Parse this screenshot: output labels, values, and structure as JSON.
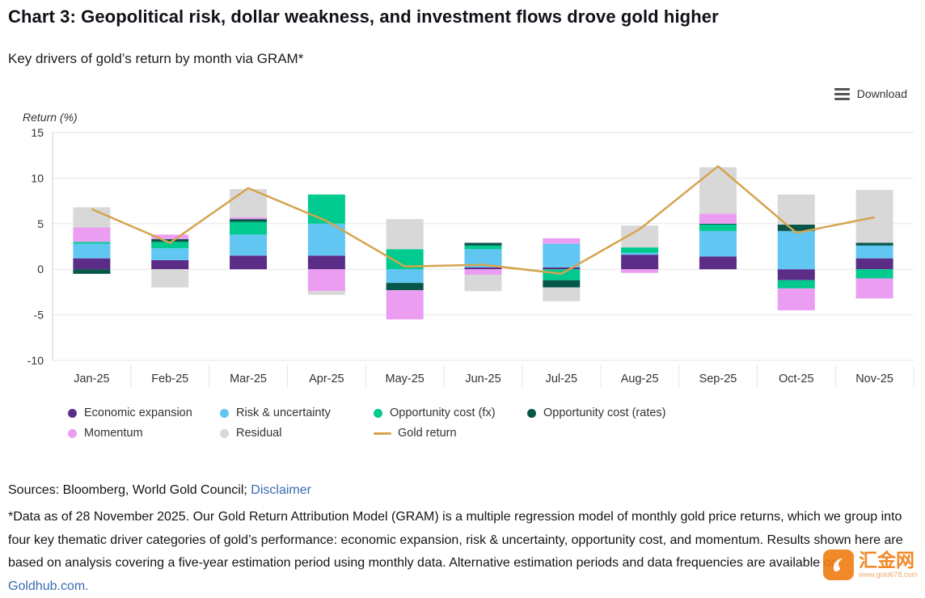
{
  "header": {
    "title": "Chart 3: Geopolitical risk, dollar weakness, and investment flows drove gold higher",
    "subtitle": "Key drivers of gold’s return by month via GRAM*"
  },
  "toolbar": {
    "download_label": "Download"
  },
  "chart_data": {
    "type": "bar",
    "stacked": true,
    "ylabel": "Return (%)",
    "ylim": [
      -10,
      15
    ],
    "yticks": [
      15,
      10,
      5,
      0,
      -5,
      -10
    ],
    "grid": true,
    "legend_position": "bottom",
    "categories": [
      "Jan-25",
      "Feb-25",
      "Mar-25",
      "Apr-25",
      "May-25",
      "Jun-25",
      "Jul-25",
      "Aug-25",
      "Sep-25",
      "Oct-25",
      "Nov-25"
    ],
    "series": [
      {
        "name": "Economic expansion",
        "color": "#5c2d87",
        "values": [
          1.2,
          1.0,
          1.5,
          1.5,
          0.0,
          0.2,
          0.2,
          1.6,
          1.4,
          -1.2,
          1.2
        ]
      },
      {
        "name": "Risk & uncertainty",
        "color": "#61c6f2",
        "values": [
          1.6,
          1.3,
          2.3,
          3.5,
          -1.5,
          2.0,
          2.6,
          0.2,
          2.8,
          4.2,
          1.4
        ]
      },
      {
        "name": "Opportunity cost (fx)",
        "color": "#00ca8e",
        "values": [
          0.2,
          0.7,
          1.4,
          3.2,
          2.2,
          0.4,
          -1.2,
          0.6,
          0.7,
          -0.9,
          -1.0
        ]
      },
      {
        "name": "Opportunity cost (rates)",
        "color": "#07564a",
        "values": [
          -0.5,
          0.3,
          0.3,
          0.0,
          -0.8,
          0.3,
          -0.8,
          0.0,
          0.1,
          0.7,
          0.3
        ]
      },
      {
        "name": "Momentum",
        "color": "#eb9df2",
        "values": [
          1.6,
          0.5,
          0.2,
          -2.4,
          -3.2,
          -0.6,
          0.6,
          -0.4,
          1.1,
          -2.4,
          -2.2
        ]
      },
      {
        "name": "Residual",
        "color": "#d8d8d8",
        "values": [
          2.2,
          -2.0,
          3.1,
          -0.4,
          3.3,
          -1.8,
          -1.5,
          2.4,
          5.1,
          3.3,
          5.8
        ]
      }
    ],
    "line_series": {
      "name": "Gold return",
      "color": "#d6a44e",
      "values": [
        6.6,
        2.9,
        8.9,
        5.3,
        0.3,
        0.5,
        -0.5,
        4.4,
        11.3,
        4.0,
        5.7
      ]
    }
  },
  "footer": {
    "sources_text": "Sources: Bloomberg, World Gold Council;",
    "disclaimer_label": "Disclaimer",
    "footnote_text": "*Data as of 28 November 2025. Our Gold Return Attribution Model (GRAM) is a multiple regression model of monthly gold price returns, which we group into four key thematic driver categories of gold’s performance: economic expansion, risk & uncertainty, opportunity cost, and momentum. Results shown here are based on analysis covering a five-year estimation period using monthly data. Alternative estimation periods and data frequencies are available on ",
    "goldhub_label": "Goldhub.com."
  },
  "watermark": {
    "name": "汇金网",
    "site": "www.gold678.com"
  }
}
